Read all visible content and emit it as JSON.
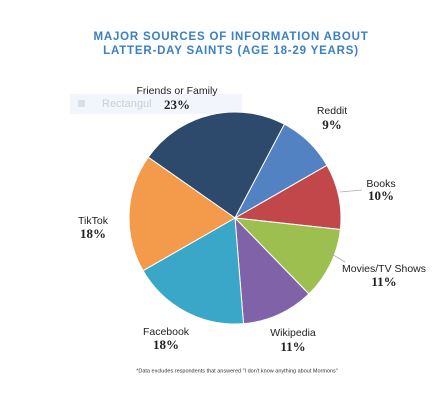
{
  "chart_data": {
    "type": "pie",
    "title": [
      "MAJOR SOURCES OF INFORMATION ABOUT",
      "LATTER-DAY SAINTS (AGE 18-29 YEARS)"
    ],
    "categories": [
      "Friends or Family",
      "Reddit",
      "Books",
      "Movies/TV Shows",
      "Wikipedia",
      "Facebook",
      "TikTok"
    ],
    "values": [
      23,
      9,
      10,
      11,
      11,
      18,
      18
    ],
    "value_labels": [
      "23%",
      "9%",
      "10%",
      "11%",
      "11%",
      "18%",
      "18%"
    ],
    "colors": [
      "#2d4a6c",
      "#5282c2",
      "#c2474b",
      "#9dbf50",
      "#7f62a8",
      "#3ba7c8",
      "#f39a4b"
    ],
    "footnote": "*Data excludes respondents that answered \"I don't know anything about Mormons\"",
    "overlay_label": "Rectangul"
  }
}
